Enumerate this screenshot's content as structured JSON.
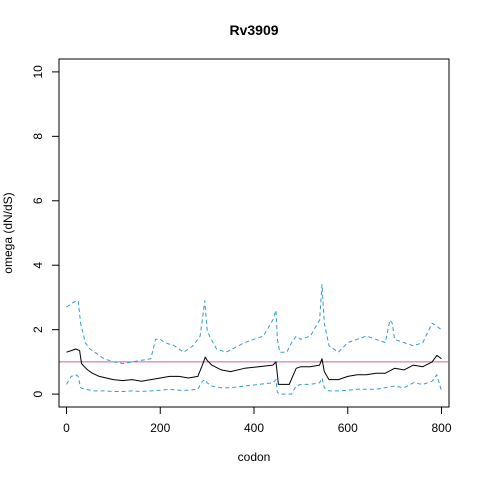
{
  "chart_data": {
    "type": "line",
    "title": "Rv3909",
    "xlabel": "codon",
    "ylabel": "omega (dN/dS)",
    "xlim": [
      -16,
      816
    ],
    "ylim": [
      -0.4,
      10.4
    ],
    "x_ticks": [
      0,
      200,
      400,
      600,
      800
    ],
    "y_ticks": [
      0,
      2,
      4,
      6,
      8,
      10
    ],
    "grid": false,
    "legend": "none",
    "reference_line": {
      "y": 1,
      "color": "#cc6699"
    },
    "series": [
      {
        "style": "solid",
        "color": "#000000",
        "x": [
          0,
          10,
          20,
          28,
          32,
          38,
          45,
          55,
          70,
          85,
          100,
          120,
          140,
          160,
          180,
          200,
          220,
          240,
          260,
          280,
          290,
          296,
          300,
          310,
          330,
          350,
          380,
          410,
          440,
          447,
          450,
          452,
          460,
          475,
          490,
          500,
          520,
          540,
          545,
          550,
          560,
          580,
          600,
          620,
          640,
          660,
          680,
          700,
          720,
          740,
          760,
          780,
          790,
          800
        ],
        "y": [
          1.3,
          1.35,
          1.4,
          1.35,
          0.95,
          0.85,
          0.75,
          0.65,
          0.55,
          0.5,
          0.45,
          0.42,
          0.45,
          0.4,
          0.45,
          0.5,
          0.55,
          0.55,
          0.5,
          0.55,
          0.9,
          1.15,
          1.05,
          0.9,
          0.75,
          0.7,
          0.8,
          0.85,
          0.9,
          1.0,
          0.6,
          0.3,
          0.3,
          0.3,
          0.8,
          0.85,
          0.85,
          0.9,
          1.1,
          0.7,
          0.45,
          0.45,
          0.55,
          0.6,
          0.6,
          0.65,
          0.65,
          0.8,
          0.75,
          0.9,
          0.85,
          1.0,
          1.2,
          1.1
        ]
      },
      {
        "style": "dashed",
        "color": "#3399dd",
        "x": [
          0,
          10,
          20,
          25,
          30,
          40,
          50,
          60,
          80,
          100,
          120,
          140,
          160,
          180,
          190,
          200,
          210,
          230,
          250,
          270,
          285,
          295,
          300,
          305,
          320,
          340,
          360,
          380,
          400,
          420,
          440,
          447,
          450,
          455,
          470,
          480,
          490,
          500,
          520,
          540,
          545,
          550,
          560,
          580,
          600,
          620,
          640,
          660,
          680,
          690,
          695,
          700,
          720,
          740,
          760,
          780,
          790,
          800
        ],
        "y": [
          2.7,
          2.8,
          2.9,
          2.9,
          2.2,
          1.6,
          1.4,
          1.3,
          1.1,
          1.0,
          0.95,
          1.0,
          1.05,
          1.1,
          1.7,
          1.7,
          1.6,
          1.5,
          1.3,
          1.5,
          1.8,
          2.9,
          2.0,
          1.8,
          1.4,
          1.3,
          1.45,
          1.6,
          1.7,
          1.8,
          2.3,
          2.6,
          1.7,
          1.3,
          1.3,
          1.6,
          1.8,
          1.7,
          1.8,
          2.3,
          3.4,
          2.2,
          1.5,
          1.3,
          1.6,
          1.7,
          1.8,
          1.7,
          1.6,
          2.3,
          2.2,
          1.7,
          1.6,
          1.5,
          1.6,
          2.2,
          2.1,
          2.0
        ]
      },
      {
        "style": "dashed",
        "color": "#3399dd",
        "x": [
          0,
          10,
          20,
          25,
          30,
          40,
          60,
          80,
          100,
          120,
          140,
          160,
          180,
          200,
          220,
          240,
          260,
          280,
          290,
          296,
          300,
          310,
          330,
          350,
          380,
          410,
          440,
          447,
          450,
          455,
          470,
          480,
          490,
          500,
          520,
          540,
          545,
          550,
          560,
          580,
          600,
          620,
          640,
          660,
          680,
          700,
          720,
          740,
          760,
          780,
          790,
          800
        ],
        "y": [
          0.3,
          0.55,
          0.6,
          0.55,
          0.2,
          0.15,
          0.1,
          0.1,
          0.08,
          0.08,
          0.1,
          0.08,
          0.1,
          0.12,
          0.15,
          0.12,
          0.12,
          0.15,
          0.4,
          0.45,
          0.35,
          0.25,
          0.2,
          0.2,
          0.25,
          0.3,
          0.35,
          0.45,
          0.05,
          0.0,
          0.0,
          0.0,
          0.25,
          0.3,
          0.3,
          0.35,
          0.5,
          0.2,
          0.1,
          0.1,
          0.12,
          0.15,
          0.15,
          0.15,
          0.2,
          0.25,
          0.2,
          0.35,
          0.3,
          0.4,
          0.6,
          0.1
        ]
      }
    ]
  }
}
